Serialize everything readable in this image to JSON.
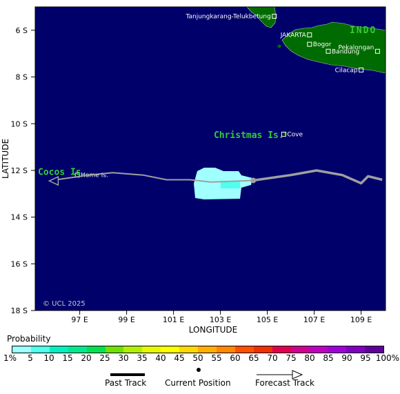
{
  "map": {
    "lat_labels": [
      "6 S",
      "8 S",
      "10 S",
      "12 S",
      "14 S",
      "16 S",
      "18 S"
    ],
    "lon_labels": [
      "97 E",
      "99 E",
      "101 E",
      "103 E",
      "105 E",
      "107 E",
      "109 E"
    ],
    "x_axis_title": "LONGITUDE",
    "y_axis_title": "LATITUDE",
    "copyright": "© UCL 2025",
    "region_label": "INDO",
    "ocean_color": "#00006b",
    "land_color": "#006b00",
    "track_color": "#a0a0a0",
    "places": [
      {
        "name": "Tanjungkarang-Telukbetung",
        "lon": 105.3,
        "lat": -5.4
      },
      {
        "name": "JAKARTA",
        "lon": 106.8,
        "lat": -6.2
      },
      {
        "name": "Bogor",
        "lon": 106.8,
        "lat": -6.6
      },
      {
        "name": "Pekalongan",
        "lon": 109.7,
        "lat": -6.9
      },
      {
        "name": "Bandung",
        "lon": 107.6,
        "lat": -6.9
      },
      {
        "name": "Cilacap",
        "lon": 109.0,
        "lat": -7.7
      },
      {
        "name": "Cove",
        "lon": 105.7,
        "lat": -10.45
      },
      {
        "name": "Home Is.",
        "lon": 96.9,
        "lat": -12.2
      }
    ],
    "islands": [
      {
        "name": "Christmas Is.",
        "lon": 105.65,
        "lat": -10.5
      },
      {
        "name": "Cocos Is.",
        "lon": 96.85,
        "lat": -12.1
      }
    ],
    "past_track": [
      {
        "lon": 109.9,
        "lat": -12.4
      },
      {
        "lon": 109.3,
        "lat": -12.25
      },
      {
        "lon": 109.0,
        "lat": -12.55
      },
      {
        "lon": 108.2,
        "lat": -12.2
      },
      {
        "lon": 107.1,
        "lat": -12.0
      },
      {
        "lon": 106.0,
        "lat": -12.2
      },
      {
        "lon": 104.8,
        "lat": -12.37
      },
      {
        "lon": 104.4,
        "lat": -12.43
      }
    ],
    "current_position": {
      "lon": 104.4,
      "lat": -12.43
    },
    "forecast_track": [
      {
        "lon": 104.4,
        "lat": -12.43
      },
      {
        "lon": 102.6,
        "lat": -12.5
      },
      {
        "lon": 101.7,
        "lat": -12.4
      },
      {
        "lon": 100.7,
        "lat": -12.4
      },
      {
        "lon": 99.7,
        "lat": -12.2
      },
      {
        "lon": 98.4,
        "lat": -12.1
      },
      {
        "lon": 97.4,
        "lat": -12.2
      },
      {
        "lon": 96.0,
        "lat": -12.4
      },
      {
        "lon": 95.7,
        "lat": -12.45
      }
    ]
  },
  "legend": {
    "title": "Probability",
    "labels": [
      "1%",
      "5",
      "10",
      "15",
      "20",
      "25",
      "30",
      "35",
      "40",
      "45",
      "50",
      "55",
      "60",
      "65",
      "70",
      "75",
      "80",
      "85",
      "90",
      "95",
      "100%"
    ],
    "colors": [
      "#a0ffff",
      "#50ffee",
      "#00f0c0",
      "#00e88e",
      "#00e050",
      "#70e000",
      "#b0f000",
      "#e8f800",
      "#ffff00",
      "#ffd800",
      "#ffb000",
      "#ff8800",
      "#ff5000",
      "#f03000",
      "#e00050",
      "#d00090",
      "#c000c0",
      "#a000d8",
      "#8000c0",
      "#60009a"
    ],
    "past_track_label": "Past Track",
    "current_position_label": "Current Position",
    "forecast_track_label": "Forecast Track"
  }
}
